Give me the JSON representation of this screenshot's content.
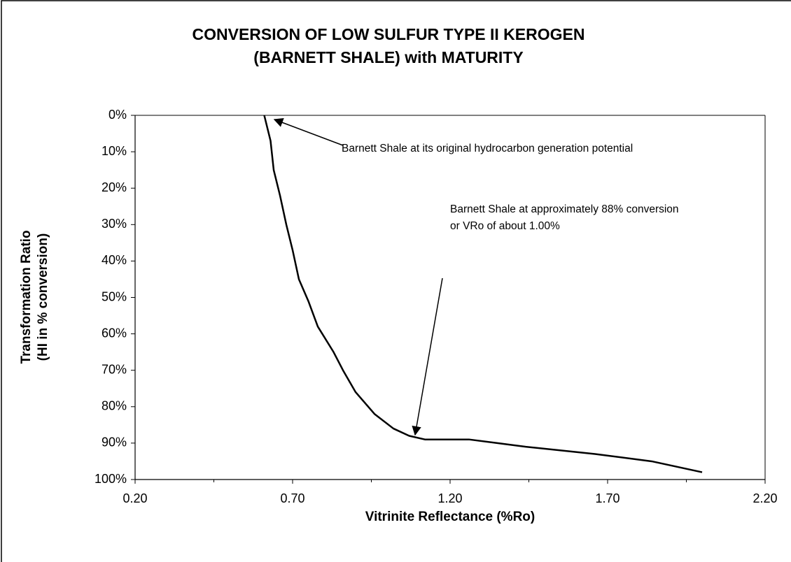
{
  "chart_data": {
    "type": "line",
    "title": [
      "CONVERSION OF LOW SULFUR TYPE II KEROGEN",
      "(BARNETT SHALE) with MATURITY"
    ],
    "x_label": "Vitrinite Reflectance (%Ro)",
    "y_label": [
      "Transformation Ratio",
      "(HI in % conversion)"
    ],
    "x": [
      0.61,
      0.63,
      0.64,
      0.66,
      0.68,
      0.7,
      0.72,
      0.75,
      0.78,
      0.83,
      0.86,
      0.9,
      0.96,
      1.02,
      1.07,
      1.12,
      1.26,
      1.35,
      1.44,
      1.66,
      1.84,
      2.0
    ],
    "series": [
      {
        "color": "#000000",
        "values": [
          0,
          7,
          15,
          22,
          30,
          37,
          45,
          51,
          58,
          65,
          70,
          76,
          82,
          86,
          88,
          89,
          89,
          90,
          91,
          93,
          95,
          98
        ]
      }
    ],
    "xlim": [
      0.2,
      2.2
    ],
    "xticks": [
      {
        "value": 0.2,
        "label": "0.20"
      },
      {
        "value": 0.7,
        "label": "0.70"
      },
      {
        "value": 1.2,
        "label": "1.20"
      },
      {
        "value": 1.7,
        "label": "1.70"
      },
      {
        "value": 2.2,
        "label": "2.20"
      }
    ],
    "ylim": [
      0,
      100
    ],
    "y_inverted": true,
    "yticks": [
      {
        "value": 0,
        "label": "0%"
      },
      {
        "value": 10,
        "label": "10%"
      },
      {
        "value": 20,
        "label": "20%"
      },
      {
        "value": 30,
        "label": "30%"
      },
      {
        "value": 40,
        "label": "40%"
      },
      {
        "value": 50,
        "label": "50%"
      },
      {
        "value": 60,
        "label": "60%"
      },
      {
        "value": 70,
        "label": "70%"
      },
      {
        "value": 80,
        "label": "80%"
      },
      {
        "value": 90,
        "label": "90%"
      },
      {
        "value": 100,
        "label": "100%"
      }
    ],
    "grid": false,
    "annotations": [
      {
        "lines": [
          "Barnett Shale at its original hydrocarbon generation potential"
        ]
      },
      {
        "lines": [
          "Barnett Shale at approximately 88% conversion",
          "or VRo of about 1.00%"
        ]
      }
    ]
  }
}
